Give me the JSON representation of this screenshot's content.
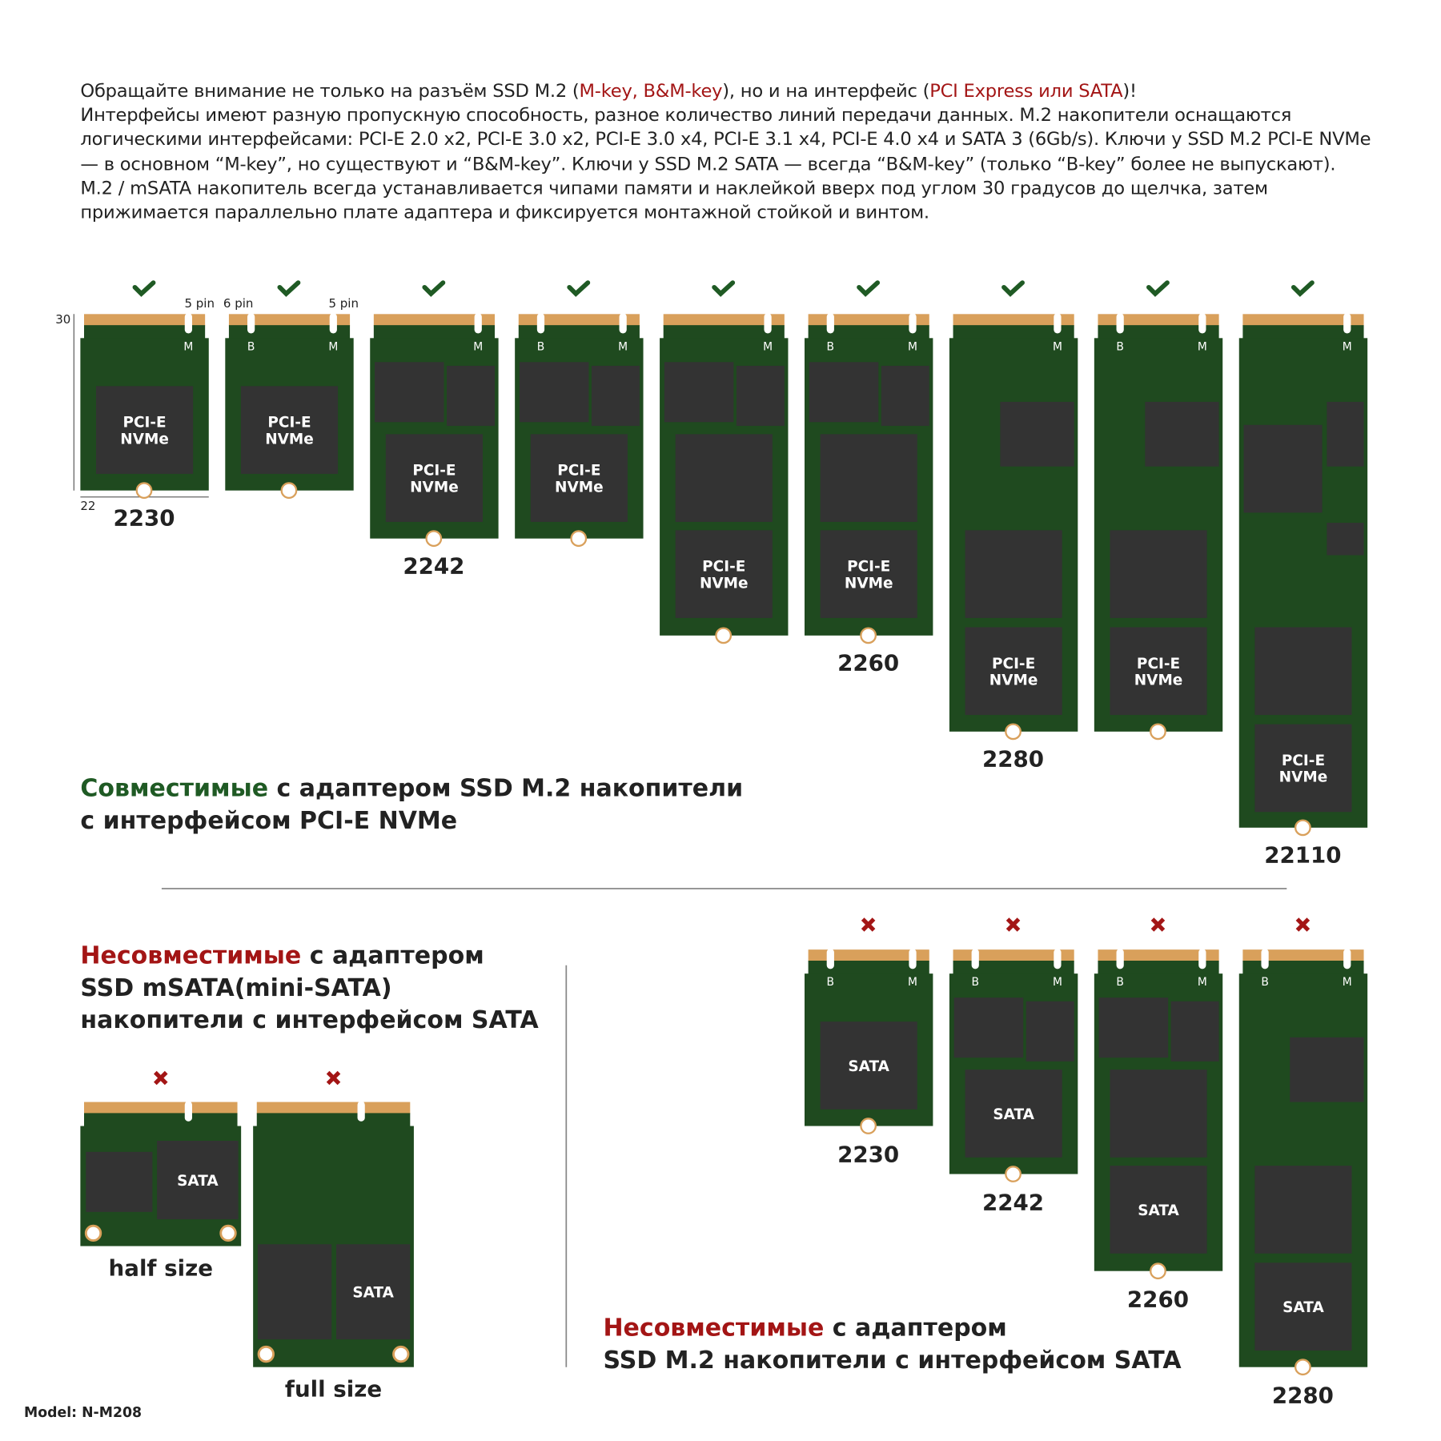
{
  "intro": [
    [
      {
        "text": "Обращайте внимание не только на разъём SSD M.2 ("
      },
      {
        "text": "M-key, B&M-key",
        "color": "#a31515"
      },
      {
        "text": "), но и на интерфейс ("
      },
      {
        "text": "PCI Express или SATA",
        "color": "#a31515"
      },
      {
        "text": ")!"
      }
    ],
    [
      {
        "text": "Интерфейсы имеют разную пропускную способность, разное количество линий передачи данных. M.2 накопители оснащаются логическими интерфейсами: PCI-E 2.0 x2, PCI-E 3.0 x2, PCI-E 3.0 x4, PCI-E 3.1 x4, PCI-E 4.0 x4 и SATA 3 (6Gb/s). Ключи у SSD M.2 PCI-E NVMe — в основном “M-key”, но существуют и “B&M-key”. Ключи у SSD M.2 SATA — всегда “B&M-key” (только “B-key” более не выпускают)."
      }
    ],
    [
      {
        "text": "M.2 / mSATA накопитель всегда устанавливается чипами памяти и наклейкой вверх под углом 30 градусов до щелчка, затем прижимается параллельно плате адаптера и фиксируется монтажной стойкой и винтом."
      }
    ]
  ],
  "dimensions": {
    "length": "30",
    "width": "22",
    "pins": [
      "5 pin",
      "6 pin",
      "5 pin"
    ]
  },
  "nvme": {
    "groups": [
      {
        "size": "2230",
        "cards": [
          {
            "keys": [
              "M"
            ],
            "chip": [
              "PCI-E",
              "NVMe"
            ]
          },
          {
            "keys": [
              "B",
              "M"
            ],
            "chip": [
              "PCI-E",
              "NVMe"
            ]
          }
        ]
      },
      {
        "size": "2242",
        "cards": [
          {
            "keys": [
              "M"
            ],
            "chip": [
              "PCI-E",
              "NVMe"
            ]
          },
          {
            "keys": [
              "B",
              "M"
            ],
            "chip": [
              "PCI-E",
              "NVMe"
            ]
          }
        ]
      },
      {
        "size": "2260",
        "cards": [
          {
            "keys": [
              "M"
            ],
            "chip": [
              "PCI-E",
              "NVMe"
            ]
          },
          {
            "keys": [
              "B",
              "M"
            ],
            "chip": [
              "PCI-E",
              "NVMe"
            ]
          }
        ]
      },
      {
        "size": "2280",
        "cards": [
          {
            "keys": [
              "M"
            ],
            "chip": [
              "PCI-E",
              "NVMe"
            ]
          },
          {
            "keys": [
              "B",
              "M"
            ],
            "chip": [
              "PCI-E",
              "NVMe"
            ]
          }
        ]
      },
      {
        "size": "22110",
        "cards": [
          {
            "keys": [
              "M"
            ],
            "chip": [
              "PCI-E",
              "NVMe"
            ]
          }
        ]
      }
    ],
    "heading": [
      [
        {
          "text": "Совместимые",
          "color": "#1f5a24"
        },
        {
          "text": " с адаптером SSD M.2 накопители"
        }
      ],
      [
        {
          "text": "с интерфейсом PCI-E NVMe"
        }
      ]
    ]
  },
  "msata": {
    "heading": [
      [
        {
          "text": "Несовместимые",
          "color": "#a31515"
        },
        {
          "text": " с адаптером"
        }
      ],
      [
        {
          "text": "SSD mSATA(mini-SATA)"
        }
      ],
      [
        {
          "text": "накопители с интерфейсом SATA"
        }
      ]
    ],
    "cards": [
      {
        "chip": "SATA",
        "caption": "half size"
      },
      {
        "chip": "SATA",
        "caption": "full size"
      }
    ]
  },
  "sata_m2": {
    "cards": [
      {
        "size": "2230",
        "keys": [
          "B",
          "M"
        ],
        "chip": "SATA"
      },
      {
        "size": "2242",
        "keys": [
          "B",
          "M"
        ],
        "chip": "SATA"
      },
      {
        "size": "2260",
        "keys": [
          "B",
          "M"
        ],
        "chip": "SATA"
      },
      {
        "size": "2280",
        "keys": [
          "B",
          "M"
        ],
        "chip": "SATA"
      }
    ],
    "heading": [
      [
        {
          "text": "Несовместимые",
          "color": "#a31515"
        },
        {
          "text": " с адаптером"
        }
      ],
      [
        {
          "text": "SSD M.2 накопители с интерфейсом SATA"
        }
      ]
    ]
  },
  "model": "Model: N-M208"
}
